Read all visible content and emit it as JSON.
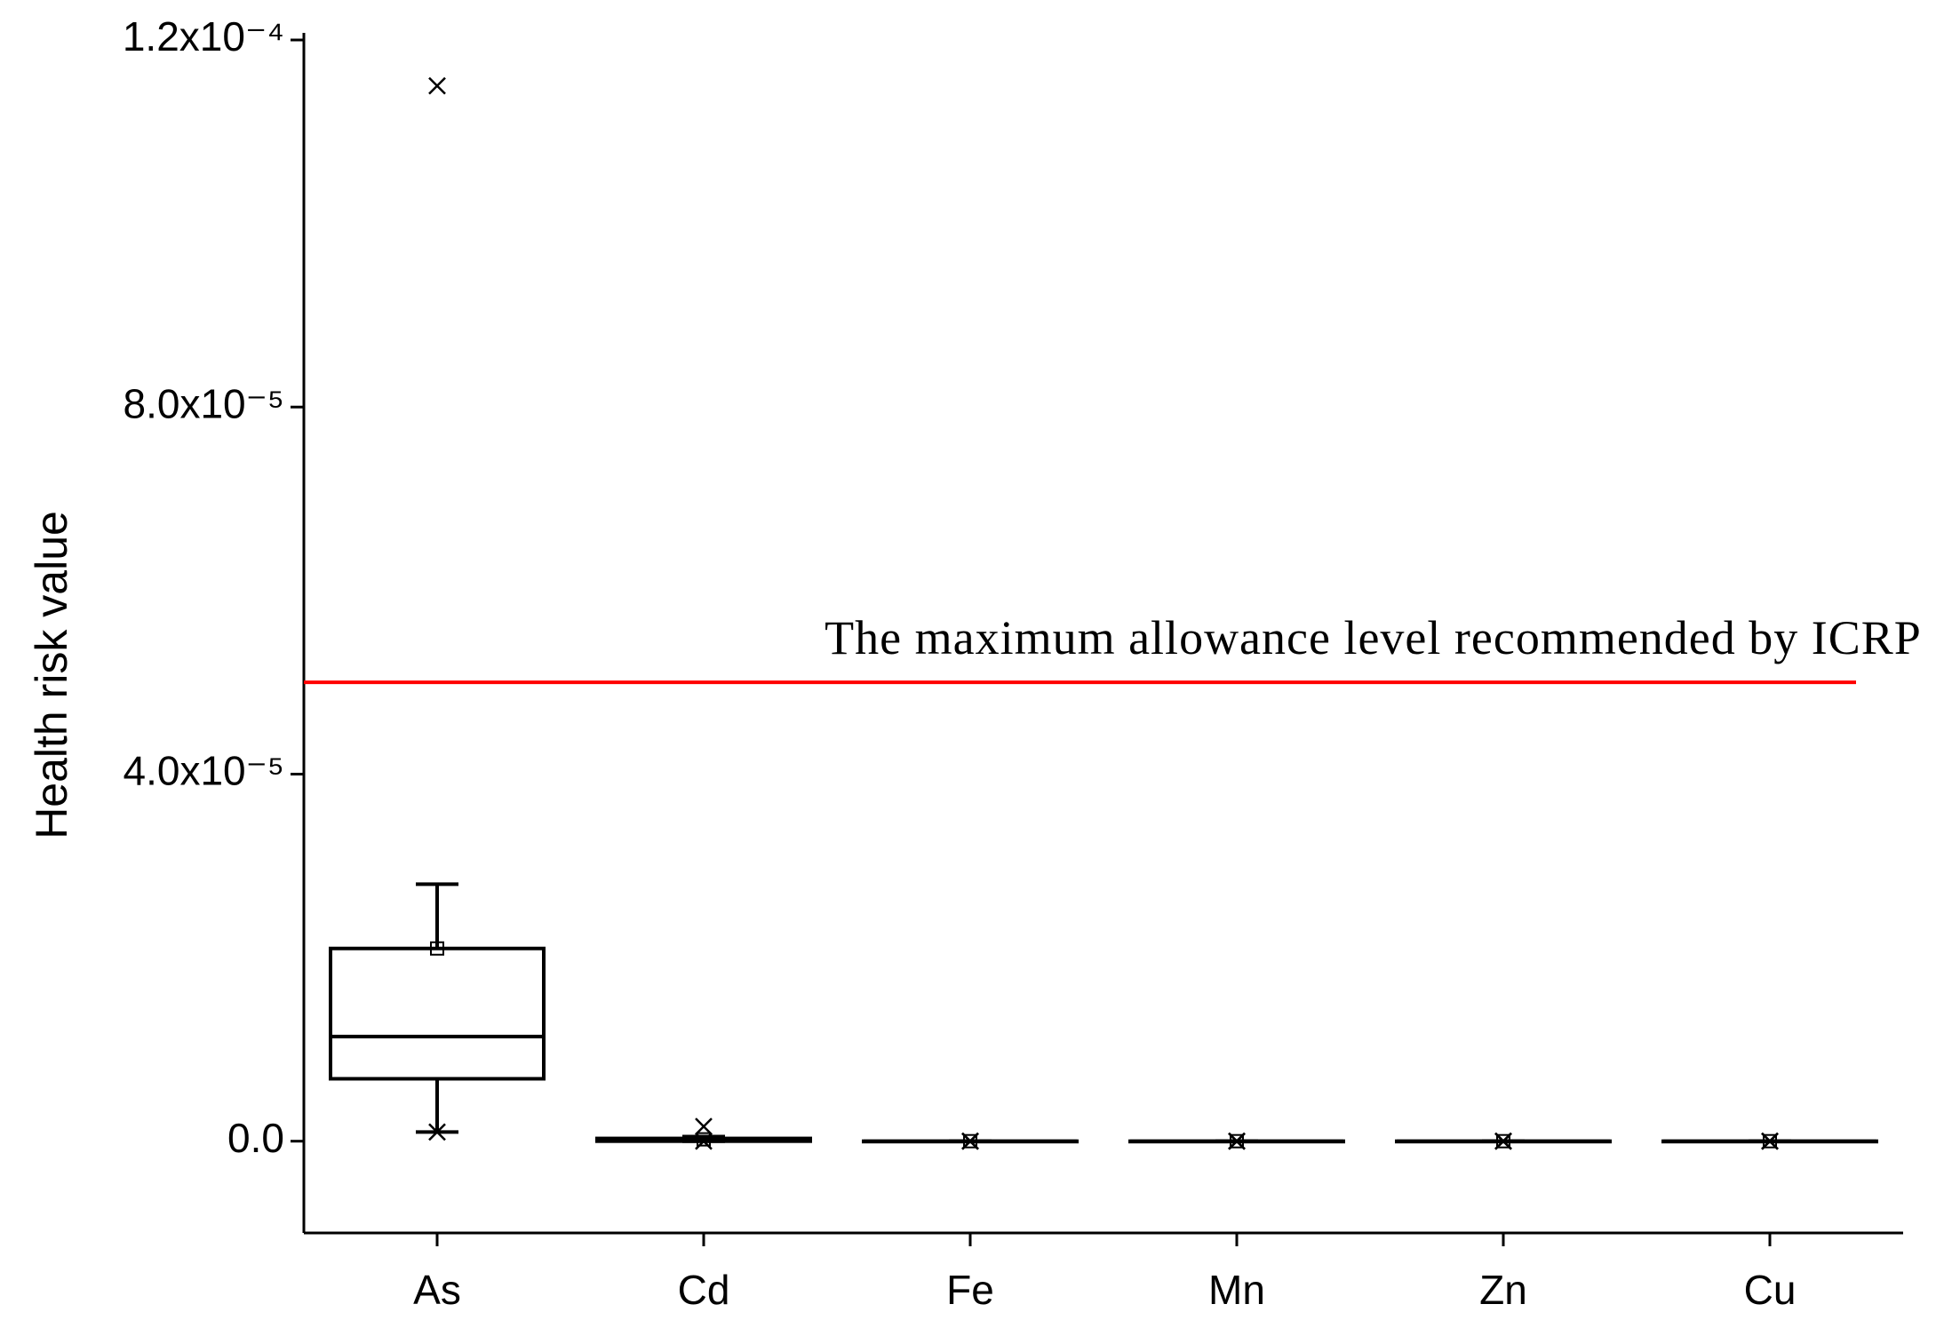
{
  "chart_data": {
    "type": "box",
    "y_label": "Health risk value",
    "categories": [
      "As",
      "Cd",
      "Fe",
      "Mn",
      "Zn",
      "Cu"
    ],
    "min": [
      1e-06,
      0,
      0,
      0,
      0,
      0
    ],
    "q1": [
      6.8e-06,
      0,
      0,
      0,
      0,
      0
    ],
    "median": [
      1.14e-05,
      1e-07,
      0,
      0,
      0,
      0
    ],
    "q3": [
      2.1e-05,
      3e-07,
      0,
      0,
      0,
      0
    ],
    "max": [
      2.8e-05,
      5e-07,
      0,
      0,
      0,
      0
    ],
    "mean": [
      2.1e-05,
      2e-07,
      0,
      0,
      0,
      0
    ],
    "outliers": [
      [
        0.000115,
        1e-06
      ],
      [
        1.6e-06,
        0
      ],
      [
        0,
        0
      ],
      [
        0,
        0
      ],
      [
        0,
        0
      ],
      [
        0,
        0
      ]
    ],
    "ylim": [
      -1e-05,
      0.00012
    ],
    "yticks": [
      {
        "value": 0,
        "label": "0.0"
      },
      {
        "value": 4e-05,
        "label": "4.0x10⁻⁵"
      },
      {
        "value": 8e-05,
        "label": "8.0x10⁻⁵"
      },
      {
        "value": 0.00012,
        "label": "1.2x10⁻⁴"
      }
    ],
    "reference_line": {
      "value": 5e-05,
      "color": "#ff0000",
      "label": "The maximum allowance level recommended by ICRP"
    },
    "color": "#000000"
  }
}
